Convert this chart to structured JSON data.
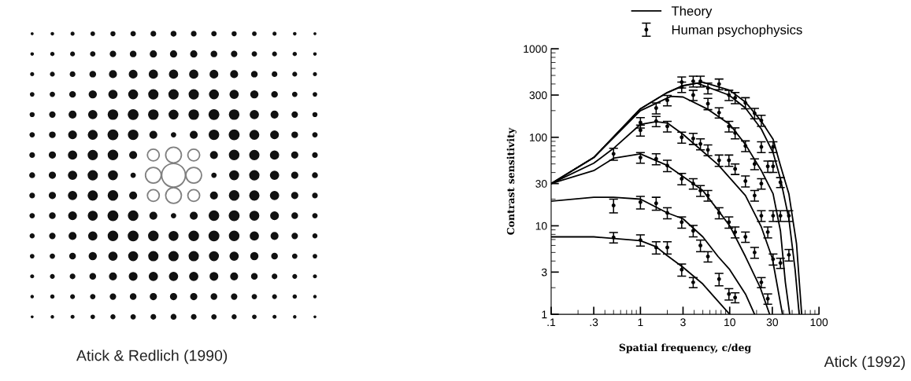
{
  "chart_data": {
    "type": "line",
    "xlabel": "Spatial frequency, c/deg",
    "ylabel": "Contrast sensitivity",
    "annotations": [
      "Atick & Redlich (1990)",
      "Atick (1992)"
    ],
    "log": "xy",
    "legend": "top",
    "xlim": [
      0.1,
      100
    ],
    "ylim": [
      1,
      1000
    ],
    "xticks": [
      {
        "value": 0.1,
        "label": ".1"
      },
      {
        "value": 0.3,
        "label": ".3"
      },
      1,
      3,
      10,
      30,
      100
    ],
    "yticks": [
      1,
      3,
      10,
      30,
      100,
      300,
      1000
    ],
    "series": [
      {
        "name": "Theory",
        "color": "#000000",
        "x": [
          0.1,
          0.3,
          1,
          1.5,
          2,
          3,
          5,
          7,
          10
        ],
        "values": [
          7.5,
          7.5,
          6.8,
          5.8,
          4.6,
          3.4,
          2.2,
          1.5,
          1
        ]
      },
      {
        "color": "#000000",
        "x": [
          0.1,
          0.3,
          0.5,
          1,
          2,
          3,
          5,
          7.4,
          10,
          15,
          19
        ],
        "values": [
          19,
          21,
          21,
          20,
          14,
          12,
          7.5,
          4.5,
          3.2,
          1.7,
          1
        ]
      },
      {
        "color": "#000000",
        "x": [
          0.1,
          0.3,
          0.5,
          1,
          2,
          3,
          5,
          7.4,
          10,
          15,
          22,
          28
        ],
        "values": [
          30,
          42,
          58,
          65,
          48,
          36,
          25,
          15,
          10,
          4.5,
          2,
          1
        ]
      },
      {
        "color": "#000000",
        "x": [
          0.1,
          0.3,
          0.5,
          1,
          1.5,
          2,
          3,
          7.4,
          15,
          22.6,
          30,
          39
        ],
        "values": [
          30,
          51,
          75,
          140,
          150,
          145,
          108,
          49,
          22,
          9.7,
          4.3,
          1
        ]
      },
      {
        "color": "#000000",
        "x": [
          0.1,
          0.3,
          1,
          2.2,
          3,
          5.7,
          10,
          15,
          22.6,
          30.6,
          37,
          42,
          47
        ],
        "values": [
          30,
          59,
          200,
          290,
          285,
          207,
          140,
          83,
          42,
          23,
          8.8,
          2.3,
          1
        ]
      },
      {
        "color": "#000000",
        "x": [
          0.1,
          0.3,
          1,
          2,
          3,
          4.3,
          9.8,
          15,
          22.6,
          30.6,
          37,
          46,
          54,
          60
        ],
        "values": [
          30,
          59,
          210,
          320,
          380,
          408,
          300,
          214,
          124,
          67,
          34,
          12,
          3.2,
          1
        ]
      },
      {
        "color": "#000000",
        "x": [
          0.1,
          0.3,
          1,
          2,
          3,
          5,
          10,
          15,
          22.6,
          30.6,
          37,
          46,
          56,
          64
        ],
        "values": [
          30,
          59,
          210,
          320,
          385,
          420,
          340,
          250,
          152,
          95,
          48,
          23,
          6.3,
          1
        ]
      },
      {
        "name": "Human psychophysics",
        "type": "scatter",
        "marker": "circle",
        "color": "#000000",
        "x": [
          0.5,
          0.5,
          0.5,
          1,
          1,
          1,
          1,
          1,
          1.5,
          1.5,
          1.5,
          1.5,
          1.5,
          2,
          2,
          2,
          2,
          2,
          2.9,
          2.9,
          2.9,
          2.9,
          2.9,
          2.9,
          3.9,
          3.9,
          3.9,
          3.9,
          3.9,
          3.9,
          4.7,
          4.7,
          4.7,
          4.7,
          5.7,
          5.7,
          5.7,
          5.7,
          5.7,
          7.6,
          7.6,
          7.6,
          7.6,
          7.6,
          9.8,
          9.8,
          9.8,
          9.8,
          9.8,
          11.5,
          11.5,
          11.5,
          11.5,
          11.5,
          15,
          15,
          15,
          15,
          19,
          19,
          19,
          19,
          22.6,
          22.6,
          22.6,
          22.6,
          22.6,
          26.7,
          26.7,
          26.7,
          30.6,
          30.6,
          30.6,
          30.6,
          37,
          37,
          37,
          46,
          46
        ],
        "values": [
          65,
          17,
          7.4,
          147,
          120,
          59,
          18.5,
          6.9,
          214,
          152,
          57,
          18,
          5.7,
          262,
          133,
          48,
          14,
          5.7,
          420,
          370,
          100,
          34,
          11,
          3.2,
          430,
          300,
          97,
          30,
          8.8,
          2.3,
          430,
          84,
          25,
          6,
          360,
          240,
          72,
          22,
          4.5,
          400,
          190,
          55,
          14,
          2.5,
          300,
          133,
          55,
          11,
          1.7,
          280,
          112,
          44,
          8.5,
          1.55,
          245,
          80,
          32,
          7.5,
          187,
          50,
          22,
          5,
          155,
          78,
          30,
          13,
          2.3,
          47,
          8.5,
          1.5,
          78,
          47,
          13,
          4.2,
          31,
          13,
          3.8,
          13,
          4.7
        ],
        "errors": [
          10,
          3,
          1,
          20,
          17,
          8,
          3,
          1,
          30,
          20,
          8,
          3,
          0.9,
          35,
          18,
          7,
          2,
          0.9,
          60,
          50,
          14,
          5,
          1.6,
          0.5,
          60,
          40,
          14,
          4,
          1.3,
          0.3,
          60,
          12,
          3.5,
          0.9,
          50,
          35,
          10,
          3,
          0.6,
          55,
          25,
          8,
          2,
          0.4,
          40,
          18,
          8,
          1.6,
          0.25,
          40,
          16,
          6,
          1.2,
          0.2,
          35,
          11,
          4.5,
          1,
          25,
          7,
          3,
          0.7,
          22,
          11,
          4,
          1.8,
          0.3,
          7,
          1.2,
          0.2,
          11,
          7,
          1.8,
          0.6,
          4,
          1.8,
          0.5,
          1.8,
          0.7
        ]
      }
    ]
  }
}
